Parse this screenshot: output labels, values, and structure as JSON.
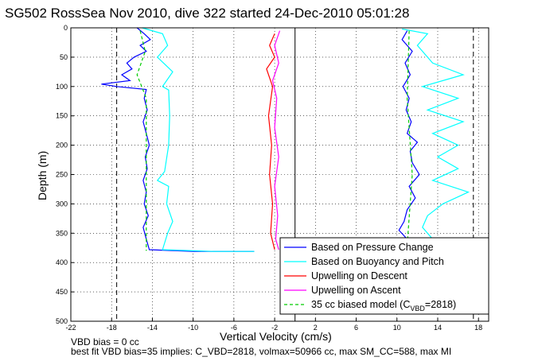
{
  "chart_data": {
    "type": "line",
    "title": "SG502 RossSea Nov 2010, dive 322 started 24-Dec-2010 05:01:28",
    "xlabel": "Vertical Velocity (cm/s)",
    "ylabel": "Depth (m)",
    "xlim": [
      -22,
      19
    ],
    "ylim": [
      500,
      0
    ],
    "x_ticks": [
      "-22",
      "-18",
      "-14",
      "-10",
      "-6",
      "-2",
      "2",
      "6",
      "10",
      "14",
      "18"
    ],
    "y_ticks": [
      "0",
      "50",
      "100",
      "150",
      "200",
      "250",
      "300",
      "350",
      "400",
      "450",
      "500"
    ],
    "grid": true,
    "legend_position": "bottom-right",
    "footnote_1": "VBD bias = 0 cc",
    "footnote_2": "best fit VBD bias=35 implies: C_VBD=2818, volmax=50966 cc, max SM_CC=588, max MI",
    "series": [
      {
        "name": "Based on Pressure Change",
        "color": "#0000ff",
        "descent": [
          [
            -15.5,
            0
          ],
          [
            -14.8,
            10
          ],
          [
            -14.2,
            20
          ],
          [
            -15.2,
            30
          ],
          [
            -14.6,
            40
          ],
          [
            -15.8,
            50
          ],
          [
            -16.5,
            60
          ],
          [
            -16.0,
            70
          ],
          [
            -17.0,
            80
          ],
          [
            -16.2,
            90
          ],
          [
            -19.0,
            96
          ],
          [
            -17.5,
            100
          ],
          [
            -14.6,
            105
          ],
          [
            -14.8,
            120
          ],
          [
            -14.5,
            140
          ],
          [
            -14.9,
            160
          ],
          [
            -14.6,
            180
          ],
          [
            -14.3,
            200
          ],
          [
            -14.7,
            220
          ],
          [
            -14.5,
            240
          ],
          [
            -14.9,
            260
          ],
          [
            -14.6,
            280
          ],
          [
            -14.8,
            300
          ],
          [
            -14.4,
            320
          ],
          [
            -14.9,
            340
          ],
          [
            -14.6,
            360
          ],
          [
            -14.3,
            378
          ],
          [
            -10.0,
            381
          ],
          [
            -4.0,
            381
          ]
        ],
        "ascent": [
          [
            11.0,
            5
          ],
          [
            10.5,
            20
          ],
          [
            11.5,
            40
          ],
          [
            10.8,
            60
          ],
          [
            11.3,
            80
          ],
          [
            10.6,
            100
          ],
          [
            11.2,
            120
          ],
          [
            10.9,
            140
          ],
          [
            11.4,
            160
          ],
          [
            11.0,
            180
          ],
          [
            12.0,
            195
          ],
          [
            11.3,
            210
          ],
          [
            11.5,
            230
          ],
          [
            12.2,
            250
          ],
          [
            11.2,
            270
          ],
          [
            11.8,
            290
          ],
          [
            11.0,
            310
          ],
          [
            10.7,
            330
          ],
          [
            10.2,
            345
          ],
          [
            11.0,
            360
          ],
          [
            11.5,
            370
          ]
        ]
      },
      {
        "name": "Based on Buoyancy and Pitch",
        "color": "#00ffff",
        "descent": [
          [
            -15.0,
            0
          ],
          [
            -13.0,
            10
          ],
          [
            -12.5,
            30
          ],
          [
            -13.5,
            50
          ],
          [
            -12.0,
            75
          ],
          [
            -13.0,
            100
          ],
          [
            -12.4,
            106
          ],
          [
            -12.3,
            150
          ],
          [
            -12.4,
            200
          ],
          [
            -12.8,
            245
          ],
          [
            -13.5,
            260
          ],
          [
            -12.4,
            270
          ],
          [
            -12.6,
            300
          ],
          [
            -12.0,
            330
          ],
          [
            -12.5,
            350
          ],
          [
            -13.0,
            378
          ],
          [
            -8.0,
            381
          ],
          [
            -4.0,
            381
          ]
        ],
        "ascent": [
          [
            10.5,
            2
          ],
          [
            13.0,
            10
          ],
          [
            12.0,
            30
          ],
          [
            13.5,
            60
          ],
          [
            16.5,
            80
          ],
          [
            12.5,
            100
          ],
          [
            16.0,
            120
          ],
          [
            13.0,
            140
          ],
          [
            16.5,
            160
          ],
          [
            13.5,
            180
          ],
          [
            16.0,
            200
          ],
          [
            14.0,
            220
          ],
          [
            16.0,
            240
          ],
          [
            13.5,
            260
          ],
          [
            17.0,
            280
          ],
          [
            14.5,
            300
          ],
          [
            13.0,
            320
          ],
          [
            12.5,
            340
          ],
          [
            13.5,
            360
          ],
          [
            12.8,
            370
          ]
        ]
      },
      {
        "name": "Upwelling on Descent",
        "color": "#ff0000",
        "descent": [
          [
            -2.0,
            10
          ],
          [
            -2.5,
            30
          ],
          [
            -2.0,
            50
          ],
          [
            -2.8,
            70
          ],
          [
            -2.2,
            100
          ],
          [
            -2.6,
            150
          ],
          [
            -2.3,
            200
          ],
          [
            -2.5,
            250
          ],
          [
            -2.2,
            300
          ],
          [
            -2.4,
            350
          ],
          [
            -2.0,
            378
          ]
        ]
      },
      {
        "name": "Upwelling on Ascent",
        "color": "#ff00ff",
        "ascent": [
          [
            -1.5,
            5
          ],
          [
            -2.0,
            30
          ],
          [
            -1.6,
            60
          ],
          [
            -2.2,
            90
          ],
          [
            -1.8,
            120
          ],
          [
            -2.0,
            170
          ],
          [
            -1.6,
            220
          ],
          [
            -2.0,
            270
          ],
          [
            -1.7,
            320
          ],
          [
            -1.9,
            360
          ],
          [
            -1.6,
            378
          ]
        ]
      },
      {
        "name": "35 cc biased model (C_VBD=2818)",
        "color": "#00cc00",
        "dashed": true,
        "descent": [
          [
            -15.2,
            5
          ],
          [
            -14.7,
            40
          ],
          [
            -15.5,
            80
          ],
          [
            -14.6,
            120
          ],
          [
            -14.6,
            380
          ]
        ],
        "ascent": [
          [
            11.2,
            5
          ],
          [
            11.0,
            120
          ],
          [
            11.5,
            250
          ],
          [
            11.0,
            370
          ]
        ]
      }
    ],
    "reference_lines": {
      "dashed_x": [
        -17.5,
        17.5
      ],
      "solid_x": [
        0
      ]
    }
  }
}
